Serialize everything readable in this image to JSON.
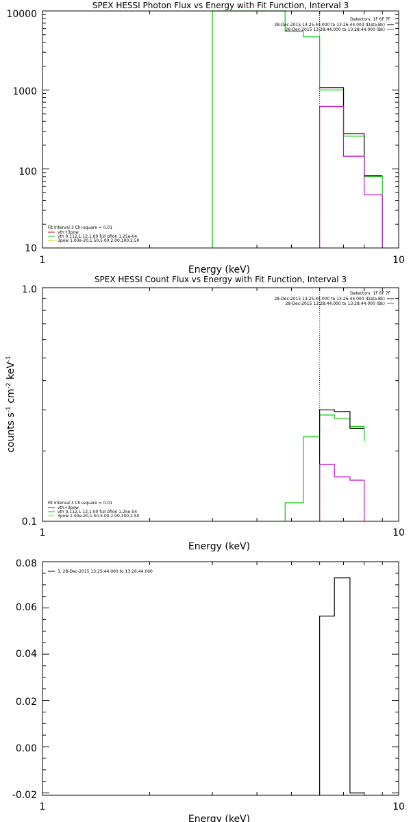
{
  "chart_data": [
    {
      "type": "line",
      "title": "SPEX HESSI Photon Flux vs Energy with Fit Function, Interval 3",
      "xlabel": "Energy (keV)",
      "ylabel": "",
      "xscale": "log",
      "yscale": "log",
      "xlim": [
        1,
        10
      ],
      "ylim": [
        10,
        10000
      ],
      "x_ticks": [
        "1",
        "10"
      ],
      "y_ticks": [
        {
          "value": 10,
          "label": "10"
        },
        {
          "value": 100,
          "label": "100"
        },
        {
          "value": 1000,
          "label": "1000"
        },
        {
          "value": 10000,
          "label": "10000"
        }
      ],
      "info": [
        "Detectors: 1F 6F 7F",
        "28-Dec-2015 13:25:44.000 to 13:26:44.000 (Data-Bk)",
        "28-Dec-2015 13:28:44.000 to 13:28:44.000 (Bk)"
      ],
      "info_colors": [
        "#000000",
        "#000000",
        "#cc00cc"
      ],
      "legend": [
        "Fit Interval 3   Chi-square = 0.01",
        "vth+3pow",
        "vth 0.112,1.12,1.00  full ofion 1.25e-04",
        "3pow 1.00e-20,1.50,5.00,2.00,100,2.50"
      ],
      "legend_colors": [
        "",
        "#cc0000",
        "#00cc00",
        "#cccc00"
      ],
      "vline_x": 6.0,
      "series": [
        {
          "color": "#00cc00",
          "points": [
            [
              3.0,
              10
            ],
            [
              3.0,
              10000
            ],
            [
              3.0,
              10000
            ],
            [
              4.8,
              10000
            ],
            [
              4.8,
              5500
            ],
            [
              5.4,
              5500
            ],
            [
              5.4,
              4700
            ],
            [
              6.0,
              4700
            ],
            [
              6.0,
              1000
            ],
            [
              7.0,
              1000
            ],
            [
              7.0,
              260
            ],
            [
              8.0,
              260
            ],
            [
              8.0,
              80
            ],
            [
              9.0,
              80
            ],
            [
              9.0,
              10
            ]
          ]
        },
        {
          "color": "#000000",
          "points": [
            [
              6.0,
              1070
            ],
            [
              7.0,
              1070
            ],
            [
              7.0,
              280
            ],
            [
              8.0,
              280
            ],
            [
              8.0,
              82
            ],
            [
              9.0,
              82
            ]
          ]
        },
        {
          "color": "#cc00cc",
          "points": [
            [
              6.0,
              10
            ],
            [
              6.0,
              620
            ],
            [
              7.0,
              620
            ],
            [
              7.0,
              145
            ],
            [
              8.0,
              145
            ],
            [
              8.0,
              47
            ],
            [
              9.0,
              47
            ],
            [
              9.0,
              10
            ]
          ]
        }
      ]
    },
    {
      "type": "line",
      "title": "SPEX HESSI Count Flux vs Energy with Fit Function, Interval 3",
      "xlabel": "Energy (keV)",
      "ylabel_parts": [
        "counts s",
        "-1",
        " cm",
        "-2",
        " keV",
        "-1"
      ],
      "xscale": "log",
      "yscale": "log",
      "xlim": [
        1,
        10
      ],
      "ylim": [
        0.1,
        1.0
      ],
      "x_ticks": [
        "1",
        "10"
      ],
      "y_ticks": [
        {
          "value": 0.1,
          "label": "0.1"
        },
        {
          "value": 1.0,
          "label": "1.0"
        }
      ],
      "info": [
        "Detectors: 1F 6F 7F",
        "28-Dec-2015 13:25:44.000 to 13:26:44.000 (Data-Bk)",
        "28-Dec-2015 13:28:44.000 to 13:28:44.000 (Bk)"
      ],
      "info_colors": [
        "#000000",
        "#000000",
        "#cc00cc"
      ],
      "legend": [
        "Fit Interval 3   Chi-square = 0.01",
        "vth+3pow",
        "vth 0.112,1.12,1.00  full ofion 1.25e-04",
        "3pow 1.00e-20,1.50,5.00,2.00,100,2.50"
      ],
      "legend_colors": [
        "",
        "#cc0000",
        "#00cc00",
        "#cccc00"
      ],
      "vline_x": 6.0,
      "series": [
        {
          "color": "#00cc00",
          "points": [
            [
              4.8,
              0.1
            ],
            [
              4.8,
              0.12
            ],
            [
              5.4,
              0.12
            ],
            [
              5.4,
              0.23
            ],
            [
              6.0,
              0.23
            ],
            [
              6.0,
              0.285
            ],
            [
              6.6,
              0.285
            ],
            [
              6.6,
              0.275
            ],
            [
              7.3,
              0.275
            ],
            [
              7.3,
              0.255
            ],
            [
              8.0,
              0.255
            ],
            [
              8.0,
              0.22
            ]
          ]
        },
        {
          "color": "#000000",
          "points": [
            [
              6.0,
              0.1
            ],
            [
              6.0,
              0.3
            ],
            [
              6.6,
              0.3
            ],
            [
              6.6,
              0.295
            ],
            [
              7.3,
              0.295
            ],
            [
              7.3,
              0.25
            ],
            [
              8.0,
              0.25
            ]
          ]
        },
        {
          "color": "#cc00cc",
          "points": [
            [
              6.0,
              0.1
            ],
            [
              6.0,
              0.175
            ],
            [
              6.6,
              0.175
            ],
            [
              6.6,
              0.155
            ],
            [
              7.3,
              0.155
            ],
            [
              7.3,
              0.15
            ],
            [
              8.0,
              0.15
            ],
            [
              8.0,
              0.1
            ]
          ]
        }
      ]
    },
    {
      "type": "line",
      "title": "",
      "xlabel": "Energy (keV)",
      "ylabel": "",
      "xscale": "log",
      "yscale": "linear",
      "xlim": [
        1,
        10
      ],
      "ylim": [
        -0.021,
        0.08
      ],
      "x_ticks": [
        "1",
        "10"
      ],
      "y_ticks": [
        {
          "value": 0.08,
          "label": "0.08"
        },
        {
          "value": 0.06,
          "label": "0.06"
        },
        {
          "value": 0.04,
          "label": "0.04"
        },
        {
          "value": 0.02,
          "label": "0.02"
        },
        {
          "value": 0.0,
          "label": "0.00"
        },
        {
          "value": -0.02,
          "label": "-0.02"
        }
      ],
      "legend": [
        "3, 28-Dec-2015 13:25:44.000 to 13:26:44.000"
      ],
      "legend_colors": [
        "#000000"
      ],
      "series": [
        {
          "color": "#000000",
          "points": [
            [
              6.0,
              -0.021
            ],
            [
              6.0,
              0.0565
            ],
            [
              6.6,
              0.0565
            ],
            [
              6.6,
              0.073
            ],
            [
              7.3,
              0.073
            ],
            [
              7.3,
              -0.02
            ],
            [
              8.0,
              -0.02
            ]
          ]
        }
      ]
    }
  ]
}
